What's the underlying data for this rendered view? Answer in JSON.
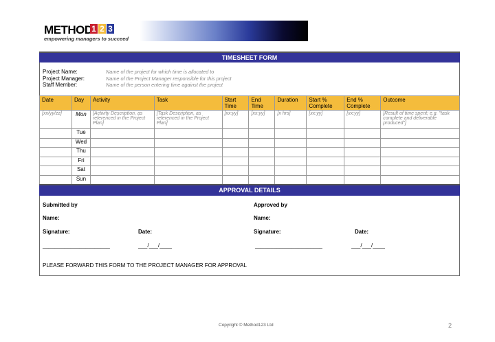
{
  "logo": {
    "text": "METHOD",
    "digits": [
      "1",
      "2",
      "3"
    ],
    "tagline": "empowering managers to succeed"
  },
  "form": {
    "title": "TIMESHEET FORM",
    "fields": [
      {
        "label": "Project Name:",
        "hint": "Name of the project for which time is allocated to"
      },
      {
        "label": "Project Manager:",
        "hint": "Name of the Project Manager responsible for this project"
      },
      {
        "label": "Staff Member:",
        "hint": "Name of the person entering time against the project"
      }
    ],
    "columns": [
      "Date",
      "Day",
      "Activity",
      "Task",
      "Start Time",
      "End Time",
      "Duration",
      "Start % Complete",
      "End % Complete",
      "Outcome"
    ],
    "first_row": [
      "[xx/yy/zz]",
      "Mon",
      "[Activity Description, as referenced in the Project Plan]",
      "[Task Description, as referenced in the Project Plan]",
      "[xx:yy]",
      "[xx:yy]",
      "[x hrs]",
      "[xx:yy]",
      "[xx:yy]",
      "[Result of time spent; e.g. \"task complete and deliverable produced\"]"
    ],
    "days": [
      "Tue",
      "Wed",
      "Thu",
      "Fri",
      "Sat",
      "Sun"
    ]
  },
  "approval": {
    "title": "APPROVAL DETAILS",
    "submitted_by": "Submitted by",
    "approved_by": "Approved by",
    "name": "Name:",
    "signature": "Signature:",
    "date": "Date:",
    "sig_line": "______________________",
    "date_line": "___/___/____",
    "footer_note": "PLEASE FORWARD THIS FORM TO THE PROJECT MANAGER  FOR APPROVAL"
  },
  "footer": {
    "copyright": "Copyright © Method123 Ltd",
    "page": "2"
  }
}
